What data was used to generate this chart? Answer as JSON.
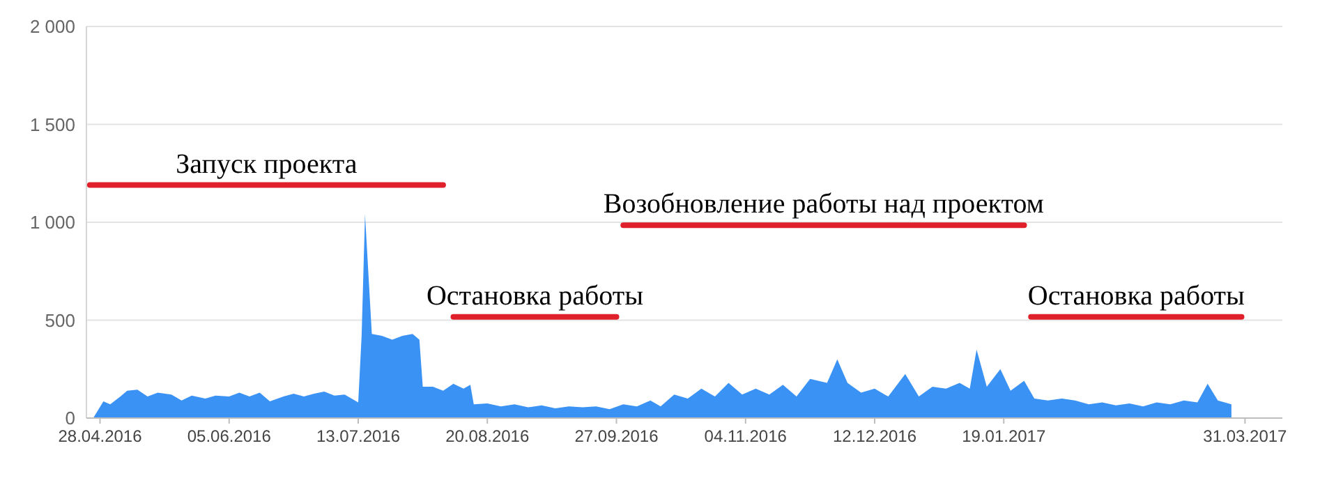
{
  "chart_data": {
    "type": "area",
    "x": [
      "2016-04-24",
      "2016-04-26",
      "2016-04-29",
      "2016-05-01",
      "2016-05-04",
      "2016-05-06",
      "2016-05-09",
      "2016-05-12",
      "2016-05-15",
      "2016-05-19",
      "2016-05-22",
      "2016-05-25",
      "2016-05-29",
      "2016-06-01",
      "2016-06-05",
      "2016-06-08",
      "2016-06-11",
      "2016-06-14",
      "2016-06-17",
      "2016-06-21",
      "2016-06-24",
      "2016-06-27",
      "2016-06-30",
      "2016-07-03",
      "2016-07-06",
      "2016-07-09",
      "2016-07-12",
      "2016-07-13",
      "2016-07-14",
      "2016-07-15",
      "2016-07-17",
      "2016-07-20",
      "2016-07-23",
      "2016-07-26",
      "2016-07-29",
      "2016-07-31",
      "2016-08-01",
      "2016-08-04",
      "2016-08-07",
      "2016-08-10",
      "2016-08-13",
      "2016-08-15",
      "2016-08-16",
      "2016-08-20",
      "2016-08-24",
      "2016-08-28",
      "2016-09-01",
      "2016-09-05",
      "2016-09-09",
      "2016-09-13",
      "2016-09-17",
      "2016-09-21",
      "2016-09-25",
      "2016-09-29",
      "2016-10-03",
      "2016-10-07",
      "2016-10-10",
      "2016-10-14",
      "2016-10-18",
      "2016-10-22",
      "2016-10-26",
      "2016-10-30",
      "2016-11-03",
      "2016-11-07",
      "2016-11-11",
      "2016-11-15",
      "2016-11-19",
      "2016-11-23",
      "2016-11-28",
      "2016-12-01",
      "2016-12-04",
      "2016-12-08",
      "2016-12-12",
      "2016-12-16",
      "2016-12-21",
      "2016-12-25",
      "2016-12-29",
      "2017-01-02",
      "2017-01-06",
      "2017-01-09",
      "2017-01-11",
      "2017-01-14",
      "2017-01-18",
      "2017-01-21",
      "2017-01-25",
      "2017-01-28",
      "2017-02-01",
      "2017-02-05",
      "2017-02-09",
      "2017-02-13",
      "2017-02-17",
      "2017-02-21",
      "2017-02-25",
      "2017-03-01",
      "2017-03-05",
      "2017-03-09",
      "2017-03-13",
      "2017-03-17",
      "2017-03-20",
      "2017-03-23",
      "2017-03-27"
    ],
    "series": [
      {
        "color": "#3a92f5",
        "values": [
          0,
          0,
          85,
          70,
          110,
          140,
          145,
          110,
          130,
          120,
          90,
          115,
          100,
          115,
          110,
          130,
          110,
          130,
          85,
          110,
          125,
          110,
          125,
          135,
          115,
          120,
          90,
          80,
          420,
          1040,
          430,
          420,
          400,
          420,
          430,
          400,
          160,
          160,
          140,
          175,
          150,
          170,
          70,
          75,
          60,
          70,
          55,
          65,
          50,
          60,
          55,
          60,
          45,
          70,
          60,
          90,
          60,
          120,
          100,
          150,
          110,
          180,
          120,
          150,
          120,
          170,
          110,
          200,
          180,
          300,
          180,
          130,
          150,
          110,
          225,
          110,
          160,
          150,
          180,
          150,
          350,
          160,
          250,
          140,
          190,
          100,
          90,
          100,
          90,
          70,
          80,
          65,
          75,
          60,
          80,
          70,
          90,
          80,
          175,
          90,
          70
        ]
      },
      {
        "type": "line",
        "name": "Запуск проекта",
        "color": "#e0202a",
        "x": [
          "2016-04-25",
          "2016-08-07"
        ],
        "values": [
          1190,
          1190
        ]
      },
      {
        "type": "line",
        "name": "Остановка работы",
        "color": "#e0202a",
        "x": [
          "2016-08-10",
          "2016-09-27"
        ],
        "values": [
          517,
          517
        ]
      },
      {
        "type": "line",
        "name": "Возобновление работы над проектом",
        "color": "#e0202a",
        "x": [
          "2016-09-29",
          "2017-01-25"
        ],
        "values": [
          985,
          985
        ]
      },
      {
        "type": "line",
        "name": "Остановка работы",
        "color": "#e0202a",
        "x": [
          "2017-01-27",
          "2017-03-30"
        ],
        "values": [
          517,
          517
        ]
      }
    ],
    "xlim": [
      "2016-04-24",
      "2017-04-11"
    ],
    "xticks": [
      {
        "value": "2016-04-28",
        "label": "28.04.2016"
      },
      {
        "value": "2016-06-05",
        "label": "05.06.2016"
      },
      {
        "value": "2016-07-13",
        "label": "13.07.2016"
      },
      {
        "value": "2016-08-20",
        "label": "20.08.2016"
      },
      {
        "value": "2016-09-27",
        "label": "27.09.2016"
      },
      {
        "value": "2016-11-04",
        "label": "04.11.2016"
      },
      {
        "value": "2016-12-12",
        "label": "12.12.2016"
      },
      {
        "value": "2017-01-19",
        "label": "19.01.2017"
      },
      {
        "value": "2017-03-31",
        "label": "31.03.2017"
      }
    ],
    "ylim": [
      0,
      2000
    ],
    "yticks": [
      0,
      {
        "value": 500,
        "label": "500"
      },
      {
        "value": 1000,
        "label": "1 000"
      },
      {
        "value": 1500,
        "label": "1 500"
      },
      {
        "value": 2000,
        "label": "2 000"
      }
    ],
    "grid": "y"
  }
}
